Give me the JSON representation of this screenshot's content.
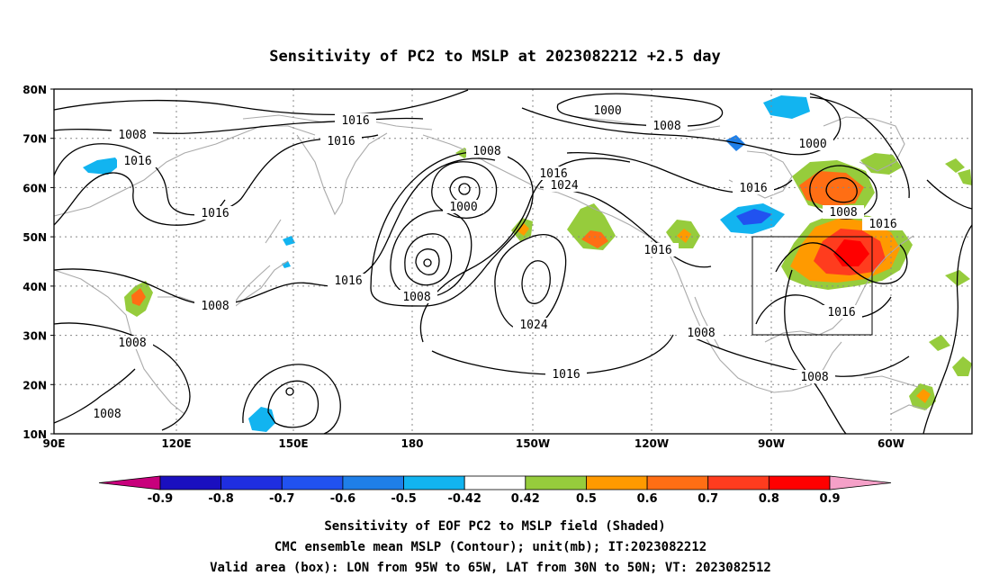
{
  "title": "Sensitivity of PC2 to MSLP at 2023082212 +2.5 day",
  "map": {
    "lat_labels": [
      "80N",
      "70N",
      "60N",
      "50N",
      "40N",
      "30N",
      "20N",
      "10N"
    ],
    "lon_labels": [
      "90E",
      "120E",
      "150E",
      "180",
      "150W",
      "120W",
      "90W",
      "60W"
    ],
    "grid": "dotted",
    "coastline_color": "#aaaaaa",
    "contour_color": "#000000",
    "contour_labels": [
      "1016",
      "1016",
      "1008",
      "1016",
      "1016",
      "1008",
      "1008",
      "1016",
      "1024",
      "1000",
      "1016",
      "1008",
      "1016",
      "1008",
      "1024",
      "1016",
      "1016",
      "1008",
      "1000",
      "1008",
      "1000",
      "1016",
      "1008",
      "1016",
      "1016",
      "1008",
      "1008",
      "1016"
    ],
    "valid_box": "LON from 95W to 65W, LAT from 30N to 50N"
  },
  "colorbar": {
    "ticks": [
      "-0.9",
      "-0.8",
      "-0.7",
      "-0.6",
      "-0.5",
      "-0.42",
      "0.42",
      "0.5",
      "0.6",
      "0.7",
      "0.8",
      "0.9"
    ],
    "colors": [
      "#c8007c",
      "#1a0fbf",
      "#1f2ee0",
      "#2152f0",
      "#1f7fe8",
      "#12b4f0",
      "#ffffff",
      "#96cc3c",
      "#ff9a00",
      "#ff6e14",
      "#ff3c1e",
      "#ff0000",
      "#f5a0c8"
    ]
  },
  "captions": [
    "Sensitivity of EOF PC2 to MSLP field (Shaded)",
    "CMC ensemble mean MSLP (Contour); unit(mb); IT:2023082212",
    "Valid area (box): LON from 95W to 65W, LAT from 30N to 50N; VT: 2023082512"
  ]
}
